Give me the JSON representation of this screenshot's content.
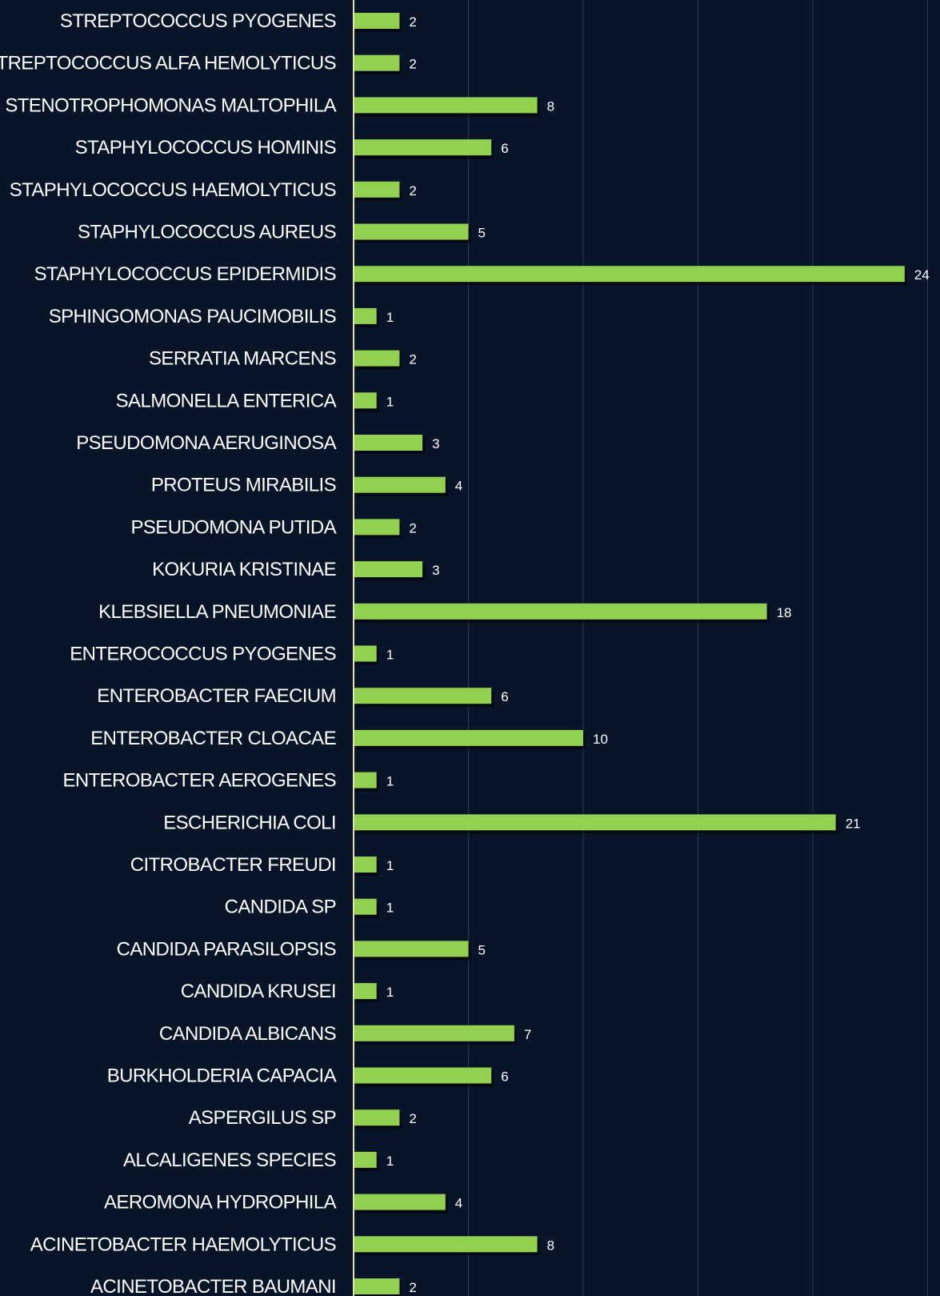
{
  "colors": {
    "background": "#081529",
    "bar": "#92d050",
    "bar_shadow": "#000000",
    "text": "#ffffff",
    "grid": "#2a3a55",
    "axis": "#e8e2b0"
  },
  "chart_data": {
    "type": "bar",
    "orientation": "horizontal",
    "title": "",
    "xlabel": "",
    "ylabel": "",
    "xlim": [
      0,
      24
    ],
    "grid": true,
    "legend": "none",
    "categories": [
      "STREPTOCOCCUS PYOGENES",
      "STREPTOCOCCUS ALFA HEMOLYTICUS",
      "STENOTROPHOMONAS MALTOPHILA",
      "STAPHYLOCOCCUS HOMINIS",
      "STAPHYLOCOCCUS HAEMOLYTICUS",
      "STAPHYLOCOCCUS AUREUS",
      "STAPHYLOCOCCUS EPIDERMIDIS",
      "SPHINGOMONAS PAUCIMOBILIS",
      "SERRATIA MARCENS",
      "SALMONELLA ENTERICA",
      "PSEUDOMONA AERUGINOSA",
      "PROTEUS MIRABILIS",
      "PSEUDOMONA PUTIDA",
      "KOKURIA KRISTINAE",
      "KLEBSIELLA PNEUMONIAE",
      "ENTEROCOCCUS PYOGENES",
      "ENTEROBACTER FAECIUM",
      "ENTEROBACTER CLOACAE",
      "ENTEROBACTER AEROGENES",
      "ESCHERICHIA COLI",
      "CITROBACTER FREUDI",
      "CANDIDA SP",
      "CANDIDA PARASILOPSIS",
      "CANDIDA KRUSEI",
      "CANDIDA ALBICANS",
      "BURKHOLDERIA CAPACIA",
      "ASPERGILUS SP",
      "ALCALIGENES SPECIES",
      "AEROMONA HYDROPHILA",
      "ACINETOBACTER HAEMOLYTICUS",
      "ACINETOBACTER BAUMANI"
    ],
    "values": [
      2,
      2,
      8,
      6,
      2,
      5,
      24,
      1,
      2,
      1,
      3,
      4,
      2,
      3,
      18,
      1,
      6,
      10,
      1,
      21,
      1,
      1,
      5,
      1,
      7,
      6,
      2,
      1,
      4,
      8,
      2
    ]
  }
}
